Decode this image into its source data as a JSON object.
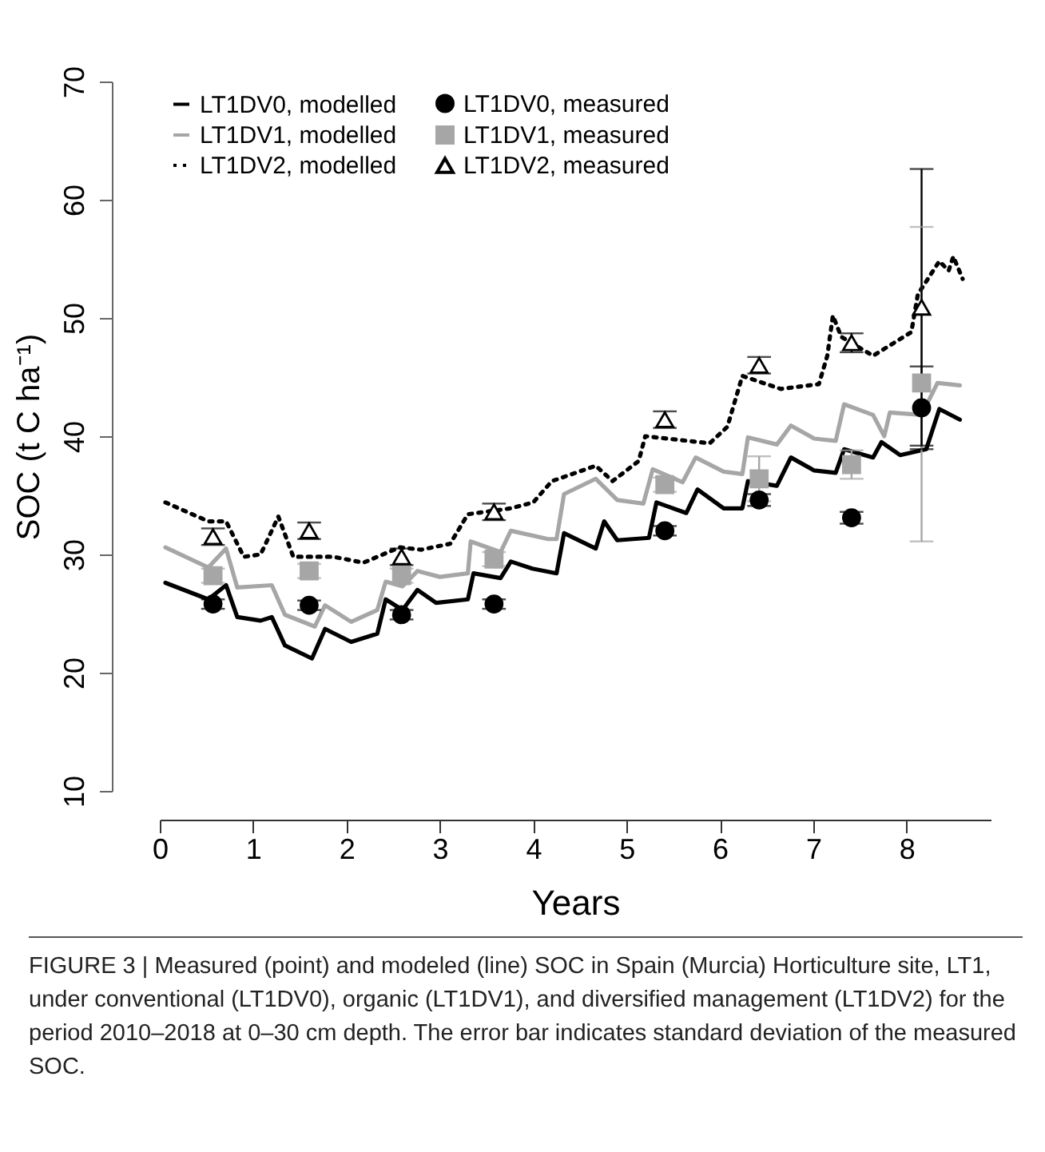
{
  "chart_data": {
    "type": "line",
    "xlabel": "Years",
    "ylabel": "SOC  (t C ha⁻¹)",
    "xlim": [
      0,
      8.9
    ],
    "xticks": [
      0,
      1,
      2,
      3,
      4,
      5,
      6,
      7,
      8
    ],
    "ylim": [
      10,
      70
    ],
    "yticks": [
      10,
      20,
      30,
      40,
      50,
      60,
      70
    ],
    "grid": false,
    "legend": "top left",
    "annotations": [
      "FIGURE 3 | Measured (point) and modeled (line) SOC in Spain (Murcia) Horticulture site, LT1, under conventional (LT1DV0), organic (LT1DV1), and diversified management (LT1DV2) for the period 2010–2018 at 0–30 cm depth. The error bar indicates standard deviation of the measured SOC."
    ],
    "series": [
      {
        "name": "LT1DV0, modelled",
        "color": "#000000",
        "line_style": "solid",
        "x": [
          0.06,
          0.52,
          0.71,
          0.83,
          1.08,
          1.2,
          1.34,
          1.63,
          1.77,
          2.05,
          2.33,
          2.42,
          2.6,
          2.76,
          2.96,
          3.3,
          3.36,
          3.65,
          3.76,
          3.99,
          4.25,
          4.33,
          4.67,
          4.76,
          4.9,
          5.24,
          5.32,
          5.64,
          5.76,
          6.04,
          6.24,
          6.3,
          6.61,
          6.76,
          7.01,
          7.24,
          7.33,
          7.64,
          7.73,
          7.93,
          8.21,
          8.35,
          8.57
        ],
        "values": [
          27.6,
          26.2,
          27.4,
          24.7,
          24.4,
          24.7,
          22.3,
          21.2,
          23.7,
          22.6,
          23.3,
          26.2,
          25.3,
          27.0,
          25.9,
          26.2,
          28.4,
          28.0,
          29.4,
          28.8,
          28.4,
          31.8,
          30.5,
          32.8,
          31.2,
          31.4,
          34.4,
          33.5,
          35.5,
          33.9,
          33.9,
          36.2,
          35.8,
          38.2,
          37.1,
          36.9,
          38.9,
          38.2,
          39.5,
          38.4,
          38.9,
          42.3,
          41.4
        ]
      },
      {
        "name": "LT1DV1, modelled",
        "color": "#a6a6a6",
        "line_style": "solid",
        "x": [
          0.06,
          0.52,
          0.71,
          0.83,
          1.2,
          1.34,
          1.66,
          1.77,
          2.05,
          2.33,
          2.42,
          2.6,
          2.76,
          3.0,
          3.3,
          3.33,
          3.65,
          3.76,
          4.16,
          4.25,
          4.33,
          4.67,
          4.9,
          5.18,
          5.28,
          5.6,
          5.74,
          6.04,
          6.24,
          6.3,
          6.61,
          6.76,
          7.01,
          7.24,
          7.33,
          7.64,
          7.76,
          7.82,
          8.16,
          8.33,
          8.57
        ],
        "values": [
          30.6,
          28.9,
          30.5,
          27.2,
          27.4,
          24.9,
          23.9,
          25.7,
          24.3,
          25.3,
          27.7,
          27.3,
          28.6,
          28.1,
          28.4,
          31.1,
          30.2,
          32.0,
          31.3,
          31.3,
          35.1,
          36.4,
          34.6,
          34.3,
          37.2,
          36.1,
          38.2,
          37.0,
          36.8,
          39.9,
          39.3,
          40.9,
          39.8,
          39.6,
          42.7,
          41.8,
          40.0,
          42.0,
          41.8,
          44.5,
          44.3
        ]
      },
      {
        "name": "LT1DV2, modelled",
        "color": "#000000",
        "line_style": "dotted",
        "x": [
          0.06,
          0.52,
          0.71,
          0.9,
          1.08,
          1.27,
          1.43,
          1.86,
          2.18,
          2.57,
          2.8,
          3.11,
          3.3,
          3.76,
          4.0,
          4.2,
          4.67,
          4.85,
          5.13,
          5.2,
          5.89,
          6.08,
          6.24,
          6.65,
          7.06,
          7.15,
          7.21,
          7.3,
          7.64,
          8.05,
          8.12,
          8.35,
          8.45,
          8.5,
          8.6
        ],
        "values": [
          34.4,
          32.8,
          32.8,
          29.8,
          30.0,
          33.2,
          29.8,
          29.8,
          29.3,
          30.6,
          30.4,
          30.9,
          33.4,
          33.9,
          34.4,
          36.2,
          37.5,
          36.2,
          37.9,
          40.0,
          39.4,
          40.8,
          45.1,
          44.0,
          44.4,
          46.8,
          50.2,
          48.4,
          46.8,
          48.8,
          52.0,
          54.8,
          54.0,
          55.2,
          53.3
        ]
      },
      {
        "name": "LT1DV0, measured",
        "type": "scatter",
        "marker": "circle",
        "color": "#000000",
        "x": [
          0.57,
          1.6,
          2.59,
          3.58,
          5.41,
          6.42,
          7.41,
          8.16
        ],
        "values": [
          25.8,
          25.7,
          24.9,
          25.8,
          32.0,
          34.6,
          33.1,
          42.4
        ],
        "errors": [
          0.4,
          0.4,
          0.4,
          0.4,
          0.4,
          0.5,
          0.5,
          3.5
        ]
      },
      {
        "name": "LT1DV1, measured",
        "type": "scatter",
        "marker": "square",
        "color": "#a6a6a6",
        "x": [
          0.57,
          1.6,
          2.59,
          3.58,
          5.41,
          6.42,
          7.41,
          8.16
        ],
        "values": [
          28.2,
          28.6,
          28.2,
          29.6,
          35.9,
          36.4,
          37.6,
          44.5
        ],
        "errors": [
          0.6,
          0.6,
          0.6,
          0.6,
          0.6,
          1.9,
          1.2,
          [
            31.1,
            57.7
          ]
        ]
      },
      {
        "name": "LT1DV2, measured",
        "type": "scatter",
        "marker": "triangle",
        "color": "#000000",
        "x": [
          0.57,
          1.6,
          2.59,
          3.58,
          5.41,
          6.42,
          7.41,
          8.16
        ],
        "values": [
          31.5,
          32.0,
          29.8,
          33.6,
          41.4,
          46.0,
          47.9,
          50.9
        ],
        "errors": [
          0.7,
          0.7,
          0.7,
          0.7,
          0.7,
          0.7,
          0.8,
          [
            39.2,
            62.6
          ]
        ]
      }
    ]
  }
}
